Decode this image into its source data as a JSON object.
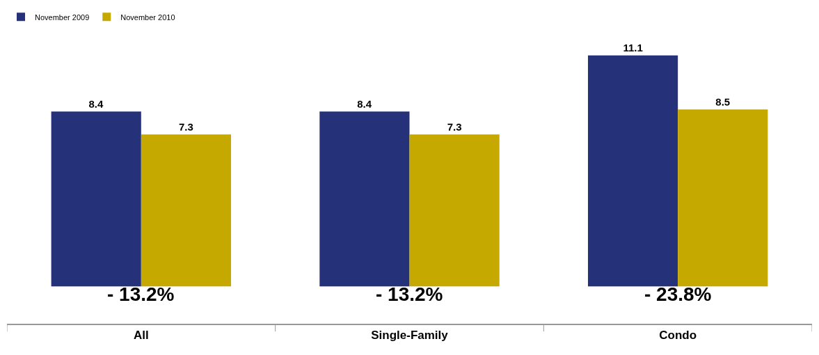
{
  "chart_data": {
    "type": "bar",
    "categories": [
      "All",
      "Single-Family",
      "Condo"
    ],
    "series": [
      {
        "name": "November 2009",
        "color": "#25327a",
        "values": [
          8.4,
          8.4,
          11.1
        ]
      },
      {
        "name": "November 2010",
        "color": "#c5a900",
        "values": [
          7.3,
          7.3,
          8.5
        ]
      }
    ],
    "data_labels": true,
    "legend": "top left",
    "annotations": [
      "- 13.2%",
      "- 13.2%",
      "- 23.8%"
    ]
  }
}
